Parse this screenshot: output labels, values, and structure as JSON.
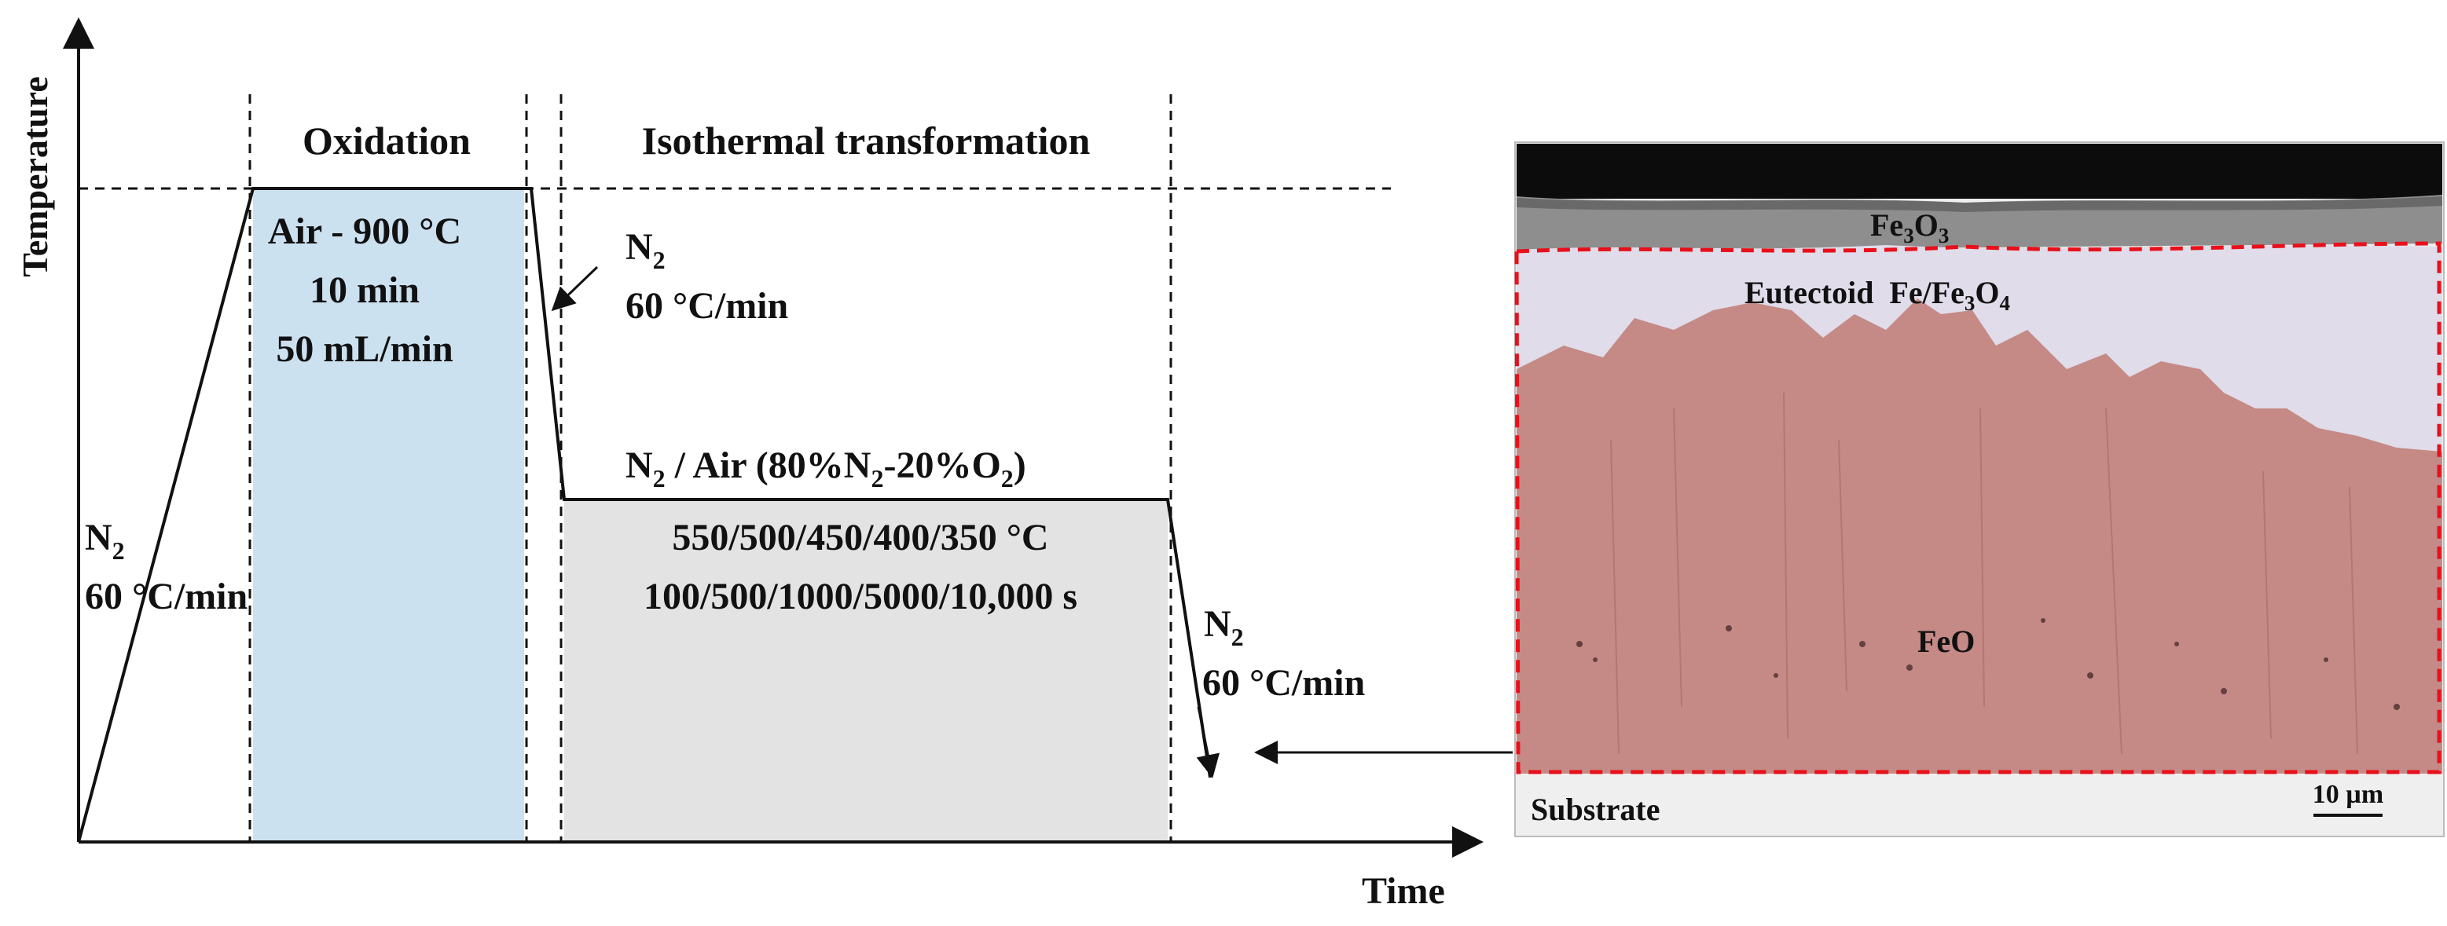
{
  "axes": {
    "y_label": "Temperature",
    "x_label": "Time"
  },
  "stages": {
    "oxidation": {
      "title": "Oxidation",
      "line1": "Air - 900 °C",
      "line2": "10 min",
      "line3": "50 mL/min"
    },
    "isothermal": {
      "title": "Isothermal transformation",
      "atmosphere_pre": "N",
      "atmosphere_sub": "2",
      "atmosphere_mid": " / Air (80%N",
      "atmosphere_sub2": "2",
      "atmosphere_mid2": "-20%O",
      "atmosphere_sub3": "2",
      "atmosphere_post": ")",
      "temps": "550/500/450/400/350 °C",
      "times": "100/500/1000/5000/10,000 s"
    }
  },
  "ramps": {
    "heating": {
      "gas": "N",
      "gas_sub": "2",
      "rate": "60 °C/min"
    },
    "cooling_to_iso": {
      "gas": "N",
      "gas_sub": "2",
      "rate": "60 °C/min"
    },
    "final_cooling": {
      "gas": "N",
      "gas_sub": "2",
      "rate": "60 °C/min"
    }
  },
  "micrograph": {
    "layer_top": {
      "base": "Fe",
      "sub1": "3",
      "mid": "O",
      "sub2": "3"
    },
    "layer_eutectoid": {
      "base": "Eutectoid  Fe/Fe",
      "sub1": "3",
      "mid": "O",
      "sub2": "4"
    },
    "layer_feo": "FeO",
    "substrate": "Substrate",
    "scale_bar": "10 µm"
  },
  "colors": {
    "oxidation_fill": "#cce1f0",
    "isothermal_fill": "#e3e3e3",
    "feo_overlay": "#c58a86",
    "eutectoid": "#e0dcea",
    "top_oxide": "#9a9a9a",
    "boundary": "#e8101a"
  }
}
